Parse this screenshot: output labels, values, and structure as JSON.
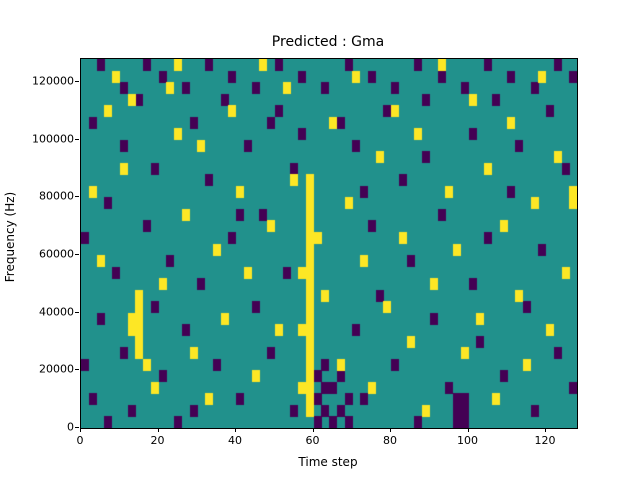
{
  "chart_data": {
    "type": "heatmap",
    "title": "Predicted : Gma",
    "xlabel": "Time step",
    "ylabel": "Frequency (Hz)",
    "xlim": [
      0,
      128
    ],
    "ylim": [
      0,
      128000
    ],
    "x_ticks": [
      0,
      20,
      40,
      60,
      80,
      100,
      120
    ],
    "y_ticks": [
      0,
      20000,
      40000,
      60000,
      80000,
      100000,
      120000
    ],
    "grid": {
      "cols": 64,
      "rows": 32,
      "cell_time_steps": 2,
      "cell_freq_hz": 4000,
      "row_origin": "bottom"
    },
    "colors": {
      "background_value": "#21918c",
      "high_value": "#fde725",
      "low_value": "#440154"
    },
    "legend": "none",
    "cells_high": [
      [
        29,
        1
      ],
      [
        29,
        2
      ],
      [
        29,
        3
      ],
      [
        29,
        4
      ],
      [
        29,
        5
      ],
      [
        29,
        6
      ],
      [
        29,
        7
      ],
      [
        29,
        8
      ],
      [
        29,
        9
      ],
      [
        29,
        10
      ],
      [
        29,
        11
      ],
      [
        29,
        12
      ],
      [
        29,
        13
      ],
      [
        29,
        14
      ],
      [
        29,
        15
      ],
      [
        29,
        16
      ],
      [
        29,
        17
      ],
      [
        29,
        18
      ],
      [
        29,
        19
      ],
      [
        29,
        20
      ],
      [
        29,
        21
      ],
      [
        28,
        3
      ],
      [
        28,
        8
      ],
      [
        28,
        13
      ],
      [
        30,
        16
      ],
      [
        7,
        6
      ],
      [
        7,
        7
      ],
      [
        7,
        8
      ],
      [
        7,
        9
      ],
      [
        7,
        10
      ],
      [
        7,
        11
      ],
      [
        6,
        8
      ],
      [
        6,
        9
      ],
      [
        8,
        5
      ],
      [
        1,
        20
      ],
      [
        2,
        14
      ],
      [
        3,
        27
      ],
      [
        4,
        30
      ],
      [
        5,
        22
      ],
      [
        6,
        28
      ],
      [
        9,
        3
      ],
      [
        10,
        12
      ],
      [
        11,
        29
      ],
      [
        12,
        25
      ],
      [
        12,
        31
      ],
      [
        13,
        18
      ],
      [
        14,
        6
      ],
      [
        15,
        24
      ],
      [
        16,
        2
      ],
      [
        17,
        15
      ],
      [
        18,
        9
      ],
      [
        19,
        27
      ],
      [
        20,
        20
      ],
      [
        21,
        13
      ],
      [
        22,
        4
      ],
      [
        23,
        31
      ],
      [
        24,
        17
      ],
      [
        25,
        8
      ],
      [
        26,
        29
      ],
      [
        27,
        21
      ],
      [
        31,
        11
      ],
      [
        32,
        26
      ],
      [
        33,
        5
      ],
      [
        34,
        19
      ],
      [
        35,
        30
      ],
      [
        36,
        14
      ],
      [
        37,
        3
      ],
      [
        38,
        23
      ],
      [
        39,
        10
      ],
      [
        40,
        27
      ],
      [
        41,
        16
      ],
      [
        42,
        7
      ],
      [
        43,
        25
      ],
      [
        44,
        1
      ],
      [
        45,
        12
      ],
      [
        46,
        31
      ],
      [
        47,
        20
      ],
      [
        48,
        15
      ],
      [
        49,
        6
      ],
      [
        50,
        28
      ],
      [
        51,
        9
      ],
      [
        52,
        22
      ],
      [
        53,
        2
      ],
      [
        54,
        17
      ],
      [
        55,
        26
      ],
      [
        56,
        11
      ],
      [
        57,
        5
      ],
      [
        58,
        19
      ],
      [
        59,
        30
      ],
      [
        60,
        8
      ],
      [
        61,
        23
      ],
      [
        62,
        13
      ],
      [
        63,
        19
      ],
      [
        63,
        20
      ]
    ],
    "cells_low": [
      [
        30,
        0
      ],
      [
        30,
        2
      ],
      [
        30,
        4
      ],
      [
        31,
        1
      ],
      [
        31,
        3
      ],
      [
        31,
        5
      ],
      [
        32,
        0
      ],
      [
        32,
        3
      ],
      [
        33,
        1
      ],
      [
        33,
        4
      ],
      [
        34,
        0
      ],
      [
        34,
        2
      ],
      [
        48,
        0
      ],
      [
        48,
        1
      ],
      [
        48,
        2
      ],
      [
        49,
        0
      ],
      [
        49,
        1
      ],
      [
        49,
        2
      ],
      [
        2,
        31
      ],
      [
        5,
        29
      ],
      [
        8,
        31
      ],
      [
        10,
        30
      ],
      [
        13,
        29
      ],
      [
        16,
        31
      ],
      [
        19,
        30
      ],
      [
        22,
        29
      ],
      [
        25,
        31
      ],
      [
        28,
        30
      ],
      [
        31,
        29
      ],
      [
        34,
        31
      ],
      [
        37,
        30
      ],
      [
        40,
        29
      ],
      [
        43,
        31
      ],
      [
        46,
        30
      ],
      [
        49,
        29
      ],
      [
        52,
        31
      ],
      [
        55,
        30
      ],
      [
        58,
        29
      ],
      [
        61,
        31
      ],
      [
        63,
        30
      ],
      [
        0,
        5
      ],
      [
        0,
        16
      ],
      [
        1,
        2
      ],
      [
        1,
        26
      ],
      [
        2,
        9
      ],
      [
        3,
        19
      ],
      [
        3,
        0
      ],
      [
        4,
        13
      ],
      [
        5,
        6
      ],
      [
        5,
        24
      ],
      [
        6,
        1
      ],
      [
        7,
        28
      ],
      [
        8,
        17
      ],
      [
        9,
        22
      ],
      [
        9,
        10
      ],
      [
        10,
        4
      ],
      [
        11,
        14
      ],
      [
        12,
        0
      ],
      [
        13,
        8
      ],
      [
        14,
        26
      ],
      [
        15,
        12
      ],
      [
        16,
        21
      ],
      [
        17,
        5
      ],
      [
        18,
        28
      ],
      [
        19,
        16
      ],
      [
        20,
        2
      ],
      [
        21,
        24
      ],
      [
        22,
        10
      ],
      [
        23,
        18
      ],
      [
        24,
        6
      ],
      [
        25,
        27
      ],
      [
        26,
        13
      ],
      [
        27,
        1
      ],
      [
        27,
        22
      ],
      [
        28,
        25
      ],
      [
        35,
        8
      ],
      [
        35,
        24
      ],
      [
        36,
        2
      ],
      [
        37,
        17
      ],
      [
        38,
        11
      ],
      [
        39,
        27
      ],
      [
        40,
        5
      ],
      [
        41,
        21
      ],
      [
        42,
        14
      ],
      [
        43,
        0
      ],
      [
        44,
        23
      ],
      [
        45,
        9
      ],
      [
        46,
        18
      ],
      [
        47,
        3
      ],
      [
        50,
        12
      ],
      [
        50,
        25
      ],
      [
        51,
        7
      ],
      [
        52,
        16
      ],
      [
        53,
        28
      ],
      [
        54,
        4
      ],
      [
        55,
        20
      ],
      [
        56,
        24
      ],
      [
        57,
        10
      ],
      [
        58,
        1
      ],
      [
        59,
        15
      ],
      [
        60,
        27
      ],
      [
        61,
        6
      ],
      [
        62,
        22
      ],
      [
        63,
        3
      ],
      [
        33,
        26
      ],
      [
        20,
        18
      ],
      [
        44,
        28
      ],
      [
        14,
        1
      ],
      [
        36,
        20
      ],
      [
        24,
        26
      ]
    ]
  }
}
